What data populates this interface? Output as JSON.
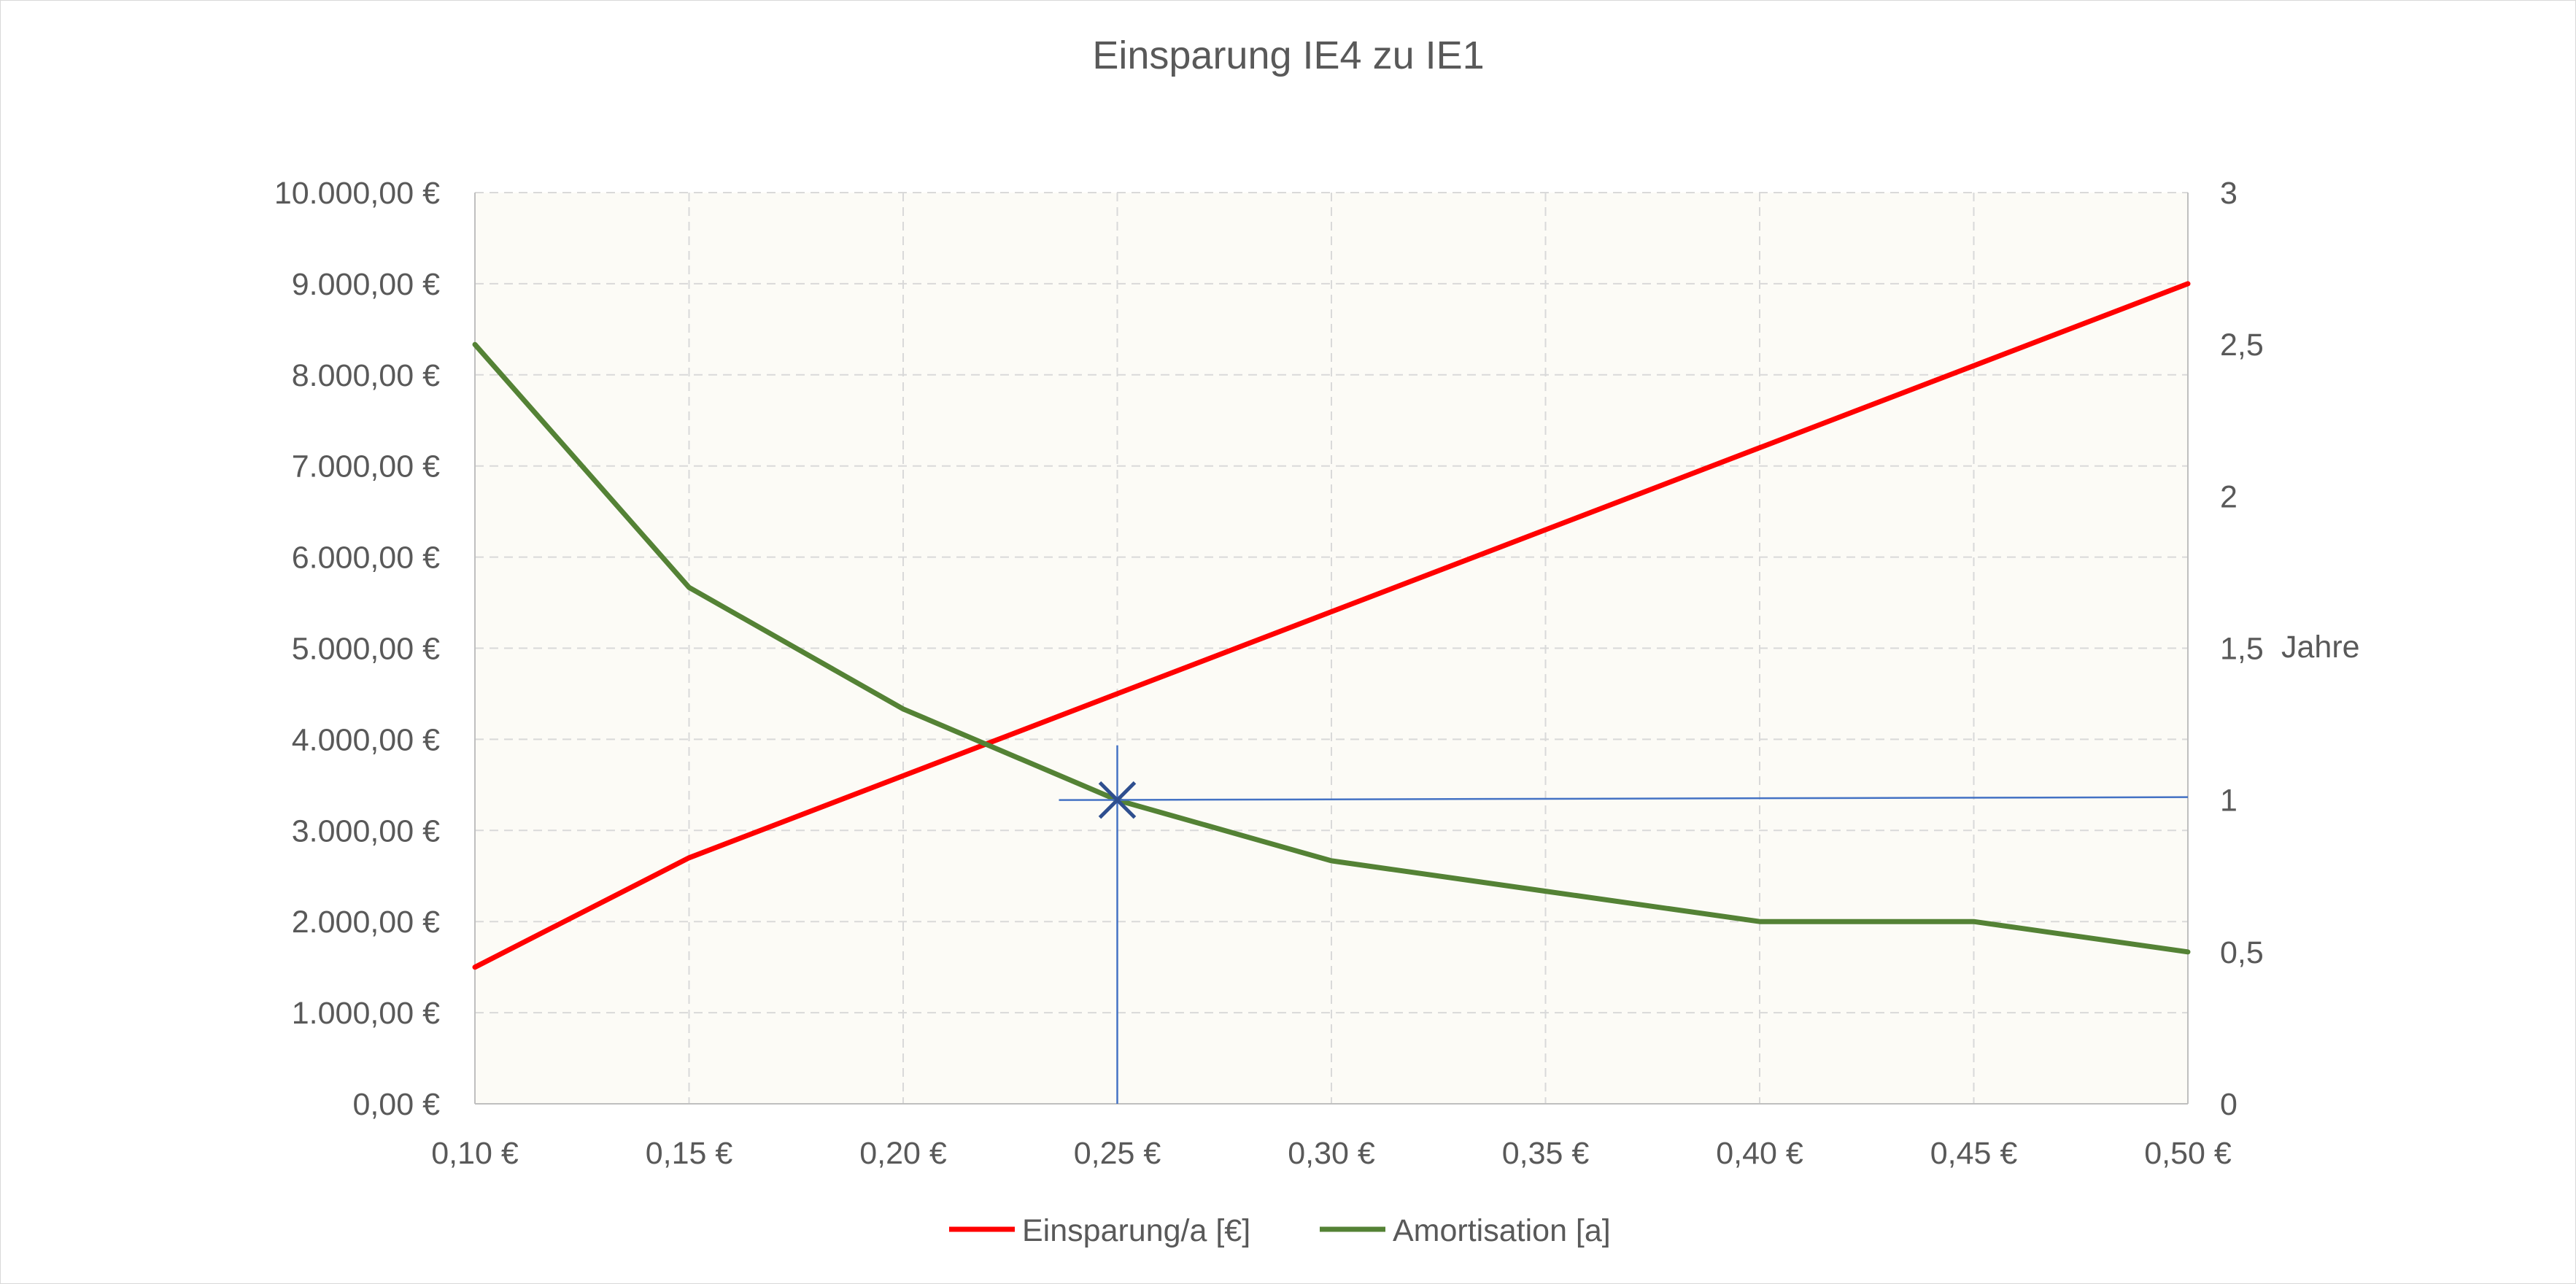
{
  "chart_data": {
    "type": "line",
    "title": "Einsparung IE4 zu IE1",
    "xlabel": "",
    "ylabel": "",
    "y2label": "Jahre",
    "categories": [
      0.1,
      0.15,
      0.2,
      0.25,
      0.3,
      0.35,
      0.4,
      0.45,
      0.5
    ],
    "x_tick_labels": [
      "0,10 €",
      "0,15 €",
      "0,20 €",
      "0,25 €",
      "0,30 €",
      "0,35 €",
      "0,40 €",
      "0,45 €",
      "0,50 €"
    ],
    "ylim": [
      0,
      10000
    ],
    "y_ticks": [
      0,
      1000,
      2000,
      3000,
      4000,
      5000,
      6000,
      7000,
      8000,
      9000,
      10000
    ],
    "y_tick_labels": [
      "0,00 €",
      "1.000,00 €",
      "2.000,00 €",
      "3.000,00 €",
      "4.000,00 €",
      "5.000,00 €",
      "6.000,00 €",
      "7.000,00 €",
      "8.000,00 €",
      "9.000,00 €",
      "10.000,00 €"
    ],
    "y2lim": [
      0,
      3
    ],
    "y2_ticks": [
      0,
      0.5,
      1,
      1.5,
      2,
      2.5,
      3
    ],
    "y2_tick_labels": [
      "0",
      "0,5",
      "1",
      "1,5",
      "2",
      "2,5",
      "3"
    ],
    "grid": true,
    "legend_position": "bottom",
    "series": [
      {
        "name": "Einsparung/a [€]",
        "axis": "left",
        "color": "#ff0000",
        "values": [
          1500,
          2700,
          3600,
          4500,
          5400,
          6300,
          7200,
          8100,
          9000
        ]
      },
      {
        "name": "Amortisation [a]",
        "axis": "right",
        "color": "#548235",
        "values": [
          2.5,
          1.7,
          1.3,
          1.0,
          0.8,
          0.7,
          0.6,
          0.6,
          0.5
        ]
      }
    ],
    "annotation": {
      "marker_x": 0.25,
      "marker_y2": 1.0,
      "color": "#4472c4"
    },
    "plot_background": "#fcfbf6"
  }
}
